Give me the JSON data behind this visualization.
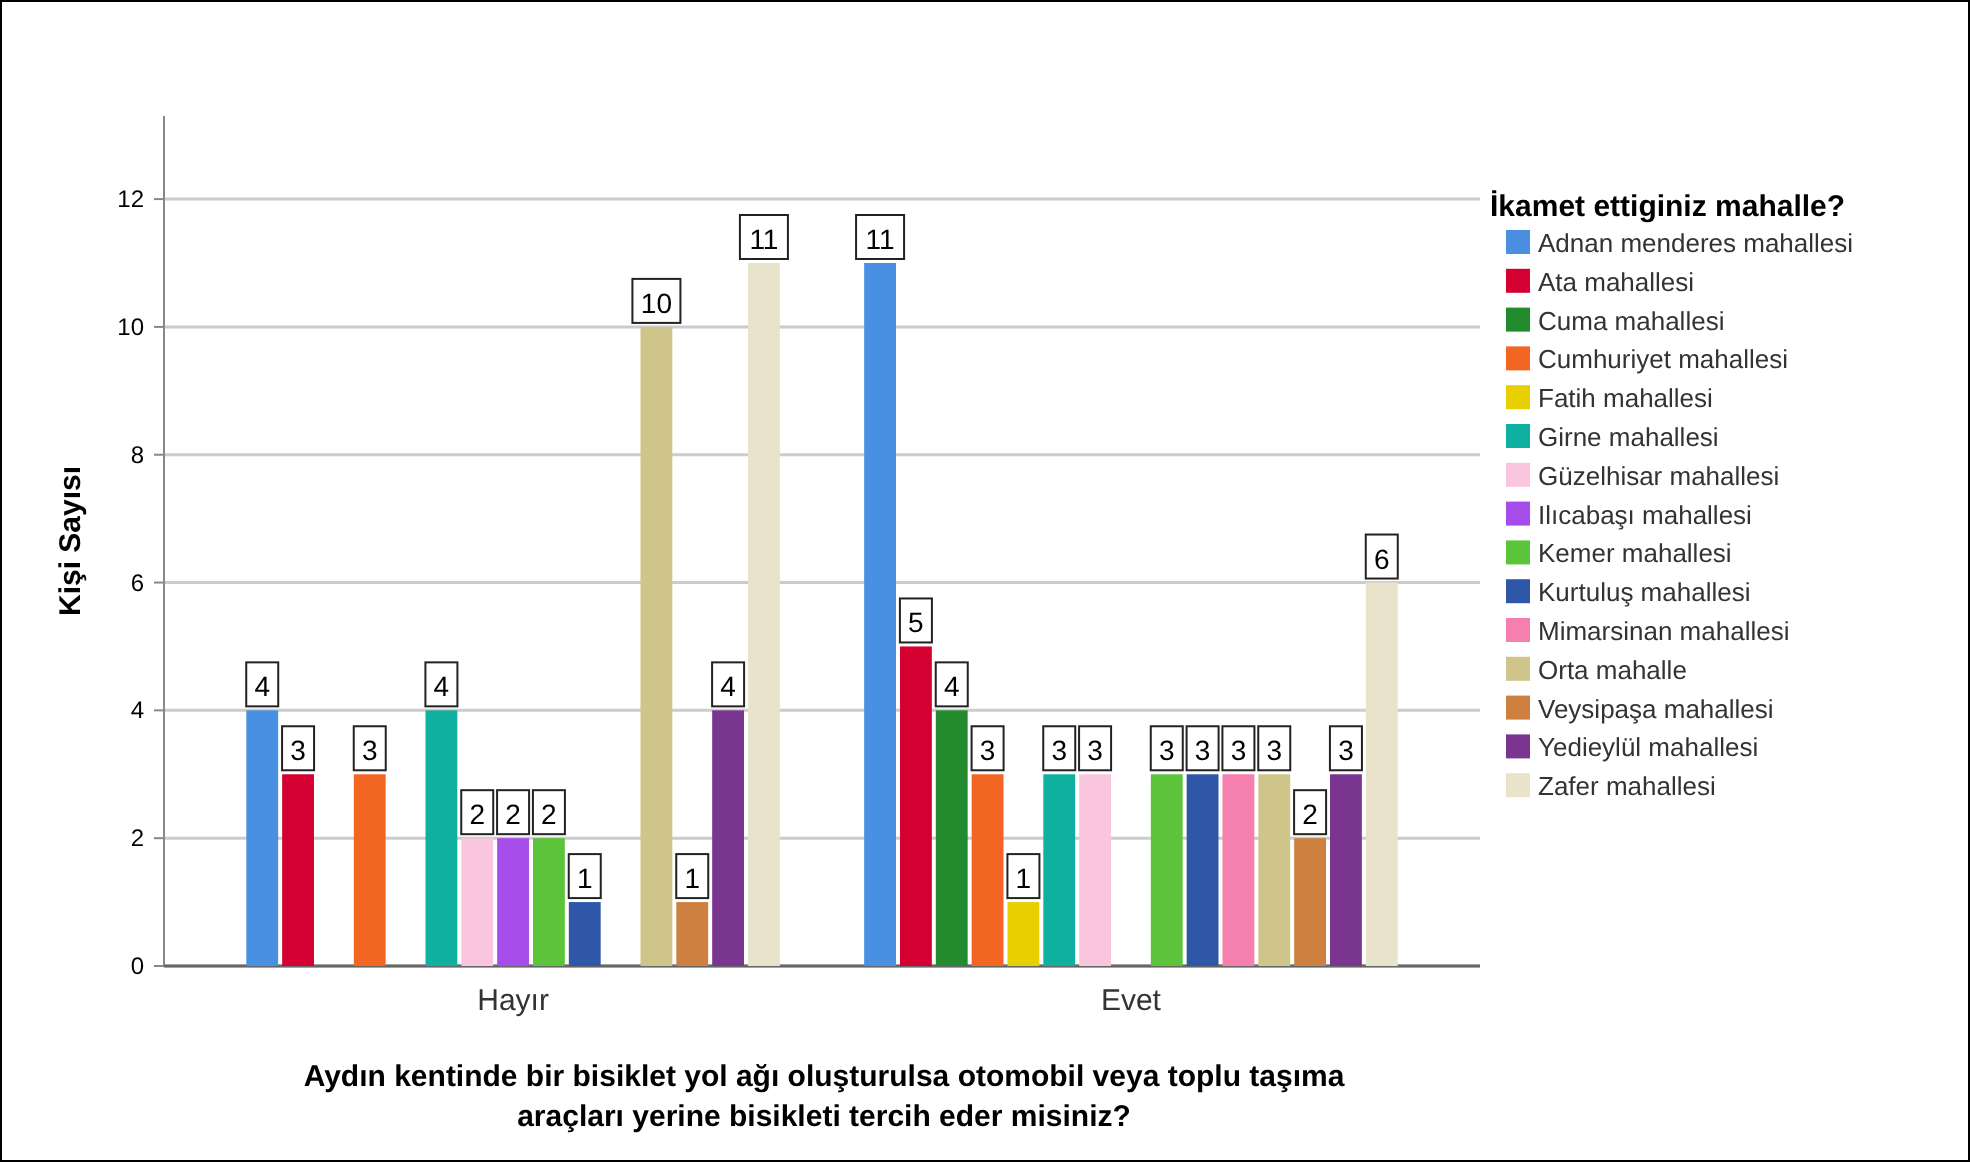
{
  "chart_data": {
    "type": "bar",
    "xlabel": "Aydın kentinde bir bisiklet yol ağı oluşturulsa otomobil veya toplu taşıma\naraçları yerine bisikleti tercih eder misiniz?",
    "ylabel": "Kişi Sayısı",
    "legend_title": "İkamet ettiginiz mahalle?",
    "legend": "right",
    "grid": "y",
    "data_labels": true,
    "categories": [
      "Hayır",
      "Evet"
    ],
    "ylim": [
      0,
      13.3
    ],
    "yticks": [
      0,
      2,
      4,
      6,
      8,
      10,
      12
    ],
    "series": [
      {
        "name": "Adnan menderes mahallesi",
        "color": "#4a90e2",
        "values": [
          4,
          11
        ]
      },
      {
        "name": "Ata mahallesi",
        "color": "#d50032",
        "values": [
          3,
          5
        ]
      },
      {
        "name": "Cuma mahallesi",
        "color": "#238b2e",
        "values": [
          null,
          4
        ]
      },
      {
        "name": "Cumhuriyet mahallesi",
        "color": "#f26522",
        "values": [
          3,
          3
        ]
      },
      {
        "name": "Fatih mahallesi",
        "color": "#e8cf00",
        "values": [
          null,
          1
        ]
      },
      {
        "name": "Girne mahallesi",
        "color": "#10b0a0",
        "values": [
          4,
          3
        ]
      },
      {
        "name": "Güzelhisar mahallesi",
        "color": "#f9c6de",
        "values": [
          2,
          3
        ]
      },
      {
        "name": "Ilıcabaşı mahallesi",
        "color": "#a64ce8",
        "values": [
          2,
          null
        ]
      },
      {
        "name": "Kemer mahallesi",
        "color": "#5cc43a",
        "values": [
          2,
          3
        ]
      },
      {
        "name": "Kurtuluş mahallesi",
        "color": "#2f57a8",
        "values": [
          1,
          3
        ]
      },
      {
        "name": "Mimarsinan mahallesi",
        "color": "#f57fae",
        "values": [
          null,
          3
        ]
      },
      {
        "name": "Orta mahalle",
        "color": "#cfc48a",
        "values": [
          10,
          3
        ]
      },
      {
        "name": "Veysipaşa mahallesi",
        "color": "#cd8040",
        "values": [
          1,
          2
        ]
      },
      {
        "name": "Yedieylül mahallesi",
        "color": "#7a3590",
        "values": [
          4,
          3
        ]
      },
      {
        "name": "Zafer mahallesi",
        "color": "#e9e3cc",
        "values": [
          11,
          6
        ]
      }
    ]
  }
}
